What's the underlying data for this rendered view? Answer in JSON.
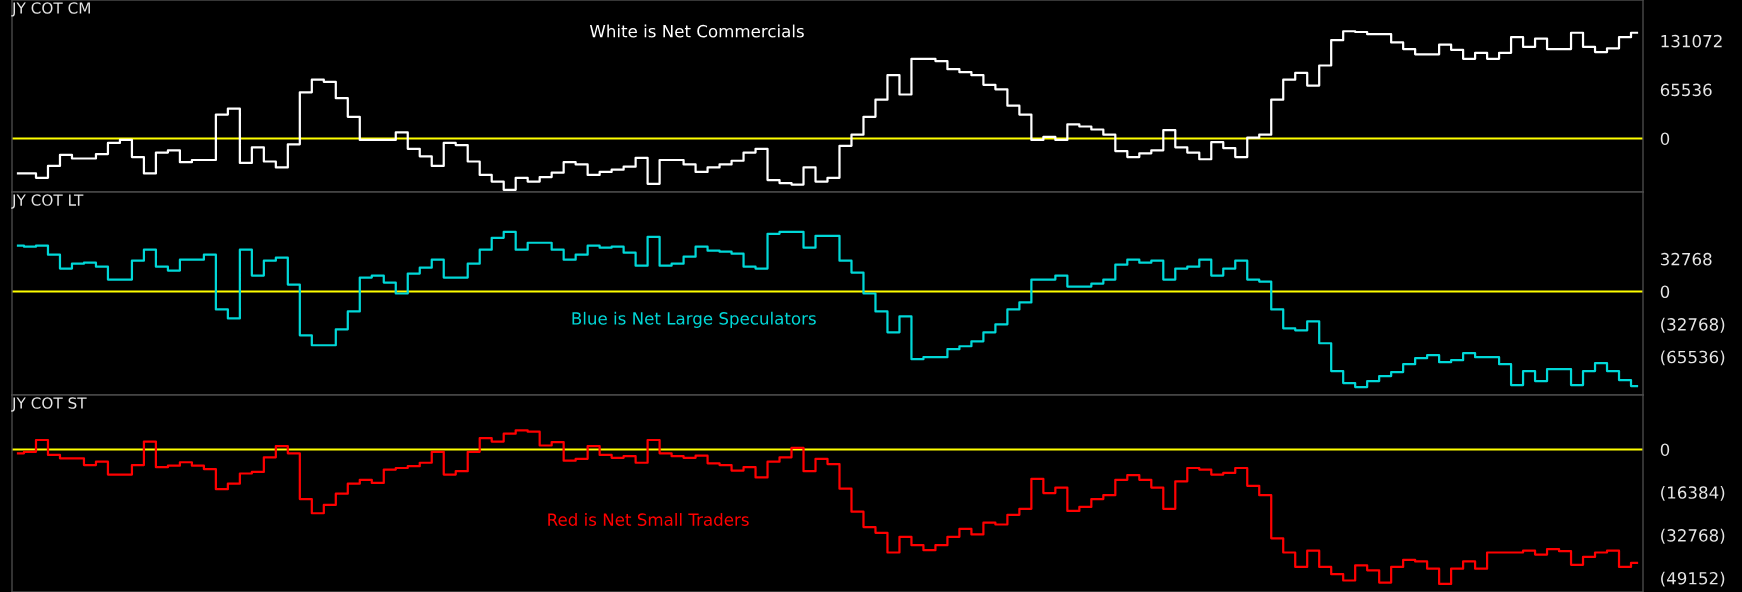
{
  "chart_data": [
    {
      "type": "step",
      "title": "JY COT CM",
      "tick_labels": "y",
      "categories": [
        null,
        null,
        null,
        null,
        null,
        null,
        null,
        null,
        null,
        null,
        null,
        null,
        null,
        null,
        null,
        null,
        null,
        null,
        null,
        null,
        null,
        null,
        null,
        null,
        null,
        null,
        null,
        null,
        null,
        null,
        null,
        null,
        null,
        null,
        null,
        null,
        null,
        null,
        null,
        null,
        null,
        null,
        null,
        null,
        null,
        null,
        null,
        null,
        null,
        null,
        null,
        null,
        null,
        null,
        null,
        null,
        null,
        null,
        null,
        null,
        null,
        null,
        null,
        null,
        null,
        null,
        null,
        null,
        null,
        null,
        null,
        null,
        null,
        null,
        null,
        null,
        null,
        null,
        null,
        null,
        null,
        null,
        null,
        null,
        null,
        null,
        null,
        null,
        null,
        null,
        null,
        null,
        null,
        null,
        null,
        null,
        null,
        null,
        null,
        null,
        null,
        null,
        null,
        null,
        null,
        null,
        null,
        null,
        null,
        null,
        null,
        null,
        null,
        null,
        null,
        null,
        null,
        null,
        null,
        null,
        null,
        null,
        null,
        null,
        null,
        null,
        null,
        null,
        null,
        null,
        null,
        null,
        null,
        null,
        null,
        null
      ],
      "series": [
        {
          "color": "#ffffff",
          "values": [
            -47000,
            -47000,
            -53000,
            -37000,
            -22000,
            -27000,
            -27000,
            -21000,
            -6000,
            -2000,
            -25000,
            -47000,
            -19000,
            -16000,
            -32000,
            -29000,
            -29000,
            32000,
            40000,
            -33000,
            -12000,
            -31000,
            -39000,
            -8000,
            62000,
            79000,
            76000,
            54000,
            29000,
            -2000,
            -2000,
            -2000,
            8000,
            -14000,
            -24000,
            -37000,
            -6000,
            -9000,
            -31000,
            -49000,
            -58000,
            -69000,
            -53000,
            -58000,
            -52000,
            -46000,
            -32000,
            -35000,
            -49000,
            -45000,
            -42000,
            -38000,
            -26000,
            -61000,
            -29000,
            -29000,
            -35000,
            -45000,
            -39000,
            -35000,
            -30000,
            -19000,
            -14000,
            -56000,
            -60000,
            -62000,
            -39000,
            -58000,
            -53000,
            -10000,
            5000,
            29000,
            52000,
            85000,
            59000,
            107000,
            107000,
            104000,
            93000,
            89000,
            85000,
            72000,
            66000,
            44000,
            32000,
            -2000,
            2000,
            -2000,
            19000,
            16000,
            12000,
            5000,
            -17000,
            -25000,
            -20000,
            -16000,
            11000,
            -12000,
            -19000,
            -28000,
            -5000,
            -13000,
            -25000,
            1000,
            5000,
            52000,
            79000,
            88000,
            71000,
            98000,
            132000,
            144000,
            143000,
            140000,
            140000,
            129000,
            120000,
            113000,
            113000,
            126000,
            119000,
            107000,
            115000,
            107000,
            115000,
            136000,
            123000,
            134000,
            120000,
            120000,
            142000,
            123000,
            116000,
            121000,
            136000,
            142000
          ]
        }
      ],
      "ylim": [
        -72000,
        186000
      ],
      "yticks": [
        0,
        65536,
        131072
      ],
      "ref_lines": [
        {
          "axis": "y",
          "value": 0,
          "color": "#ffff00"
        }
      ],
      "annotations": [
        "White is Net Commercials"
      ]
    },
    {
      "type": "step",
      "title": "JY COT LT",
      "tick_labels": "y",
      "categories": [
        null,
        null,
        null,
        null,
        null,
        null,
        null,
        null,
        null,
        null,
        null,
        null,
        null,
        null,
        null,
        null,
        null,
        null,
        null,
        null,
        null,
        null,
        null,
        null,
        null,
        null,
        null,
        null,
        null,
        null,
        null,
        null,
        null,
        null,
        null,
        null,
        null,
        null,
        null,
        null,
        null,
        null,
        null,
        null,
        null,
        null,
        null,
        null,
        null,
        null,
        null,
        null,
        null,
        null,
        null,
        null,
        null,
        null,
        null,
        null,
        null,
        null,
        null,
        null,
        null,
        null,
        null,
        null,
        null,
        null,
        null,
        null,
        null,
        null,
        null,
        null,
        null,
        null,
        null,
        null,
        null,
        null,
        null,
        null,
        null,
        null,
        null,
        null,
        null,
        null,
        null,
        null,
        null,
        null,
        null,
        null,
        null,
        null,
        null,
        null,
        null,
        null,
        null,
        null,
        null,
        null,
        null,
        null,
        null,
        null,
        null,
        null,
        null,
        null,
        null,
        null,
        null,
        null,
        null,
        null,
        null,
        null,
        null,
        null,
        null,
        null,
        null,
        null,
        null,
        null,
        null,
        null,
        null,
        null,
        null,
        null
      ],
      "series": [
        {
          "color": "#00d8d8",
          "values": [
            46000,
            45000,
            46000,
            37000,
            23000,
            28000,
            29000,
            25000,
            12000,
            12000,
            31000,
            42000,
            25000,
            21000,
            32000,
            32000,
            37000,
            -18000,
            -27000,
            42000,
            16000,
            31000,
            34000,
            7000,
            -44000,
            -54000,
            -54000,
            -38000,
            -20000,
            14000,
            16000,
            9000,
            -2000,
            18000,
            24000,
            32000,
            14000,
            14000,
            28000,
            42000,
            54000,
            60000,
            42000,
            49000,
            49000,
            42000,
            32000,
            37000,
            46000,
            44000,
            45000,
            39000,
            26000,
            55000,
            26000,
            28000,
            35000,
            45000,
            41000,
            40000,
            38000,
            25000,
            23000,
            58000,
            60000,
            60000,
            44000,
            56000,
            56000,
            31000,
            19000,
            -2000,
            -20000,
            -41000,
            -25000,
            -68000,
            -66000,
            -66000,
            -58000,
            -55000,
            -50000,
            -41000,
            -33000,
            -18000,
            -11000,
            12000,
            12000,
            16000,
            5000,
            5000,
            8000,
            12000,
            27000,
            32000,
            29000,
            31000,
            12000,
            23000,
            25000,
            32000,
            16000,
            23000,
            31000,
            12000,
            10000,
            -18000,
            -37000,
            -39000,
            -30000,
            -52000,
            -80000,
            -92000,
            -96000,
            -90000,
            -85000,
            -81000,
            -73000,
            -67000,
            -64000,
            -71000,
            -69000,
            -62000,
            -66000,
            -66000,
            -73000,
            -94000,
            -80000,
            -90000,
            -78000,
            -78000,
            -94000,
            -80000,
            -72000,
            -80000,
            -89000,
            -95000
          ]
        }
      ],
      "ylim": [
        -104000,
        100000
      ],
      "yticks": [
        32768,
        0,
        {
          "value": -32768,
          "label": "(32768)"
        },
        {
          "value": -65536,
          "label": "(65536)"
        }
      ],
      "ref_lines": [
        {
          "axis": "y",
          "value": 0,
          "color": "#ffff00"
        }
      ],
      "annotations": [
        "Blue is Net Large Speculators"
      ]
    },
    {
      "type": "step",
      "title": "JY COT ST",
      "tick_labels": "y",
      "categories": [
        null,
        null,
        null,
        null,
        null,
        null,
        null,
        null,
        null,
        null,
        null,
        null,
        null,
        null,
        null,
        null,
        null,
        null,
        null,
        null,
        null,
        null,
        null,
        null,
        null,
        null,
        null,
        null,
        null,
        null,
        null,
        null,
        null,
        null,
        null,
        null,
        null,
        null,
        null,
        null,
        null,
        null,
        null,
        null,
        null,
        null,
        null,
        null,
        null,
        null,
        null,
        null,
        null,
        null,
        null,
        null,
        null,
        null,
        null,
        null,
        null,
        null,
        null,
        null,
        null,
        null,
        null,
        null,
        null,
        null,
        null,
        null,
        null,
        null,
        null,
        null,
        null,
        null,
        null,
        null,
        null,
        null,
        null,
        null,
        null,
        null,
        null,
        null,
        null,
        null,
        null,
        null,
        null,
        null,
        null,
        null,
        null,
        null,
        null,
        null,
        null,
        null,
        null,
        null,
        null,
        null,
        null,
        null,
        null,
        null,
        null,
        null,
        null,
        null,
        null,
        null,
        null,
        null,
        null,
        null,
        null,
        null,
        null,
        null,
        null,
        null,
        null,
        null,
        null,
        null,
        null,
        null,
        null,
        null,
        null,
        null
      ],
      "series": [
        {
          "color": "#ff0000",
          "values": [
            -1500,
            -900,
            3600,
            -2100,
            -3400,
            -3400,
            -6000,
            -4700,
            -9600,
            -9600,
            -6000,
            3000,
            -6800,
            -6200,
            -4900,
            -6200,
            -7500,
            -15200,
            -13100,
            -9200,
            -8600,
            -3000,
            1300,
            -1500,
            -19000,
            -24400,
            -21200,
            -16900,
            -13100,
            -11600,
            -12800,
            -7700,
            -7100,
            -6400,
            -5100,
            -900,
            -9600,
            -8300,
            -900,
            4300,
            3000,
            6000,
            7300,
            6800,
            1500,
            2800,
            -4300,
            -3600,
            1300,
            -2100,
            -3200,
            -2600,
            -5100,
            3600,
            -1500,
            -2600,
            -3200,
            -2400,
            -5300,
            -6000,
            -8100,
            -6800,
            -10700,
            -4700,
            -3000,
            600,
            -8300,
            -3600,
            -5600,
            -15000,
            -23800,
            -29700,
            -31900,
            -39400,
            -33400,
            -36600,
            -38500,
            -36600,
            -33400,
            -30400,
            -32500,
            -28000,
            -28700,
            -25000,
            -22700,
            -11300,
            -16700,
            -14600,
            -23500,
            -22000,
            -19000,
            -17500,
            -11600,
            -9800,
            -11600,
            -14600,
            -22700,
            -12200,
            -7100,
            -7700,
            -9600,
            -9000,
            -7100,
            -13900,
            -17500,
            -34000,
            -39400,
            -44900,
            -38700,
            -44900,
            -47700,
            -50100,
            -44300,
            -46200,
            -50900,
            -44900,
            -42200,
            -42800,
            -45600,
            -51400,
            -45600,
            -42800,
            -45600,
            -39400,
            -39400,
            -39400,
            -38700,
            -40200,
            -38100,
            -38900,
            -44100,
            -41100,
            -39400,
            -38700,
            -44900,
            -43400
          ]
        }
      ],
      "ylim": [
        -54500,
        20800
      ],
      "yticks": [
        0,
        {
          "value": -16384,
          "label": "(16384)"
        },
        {
          "value": -32768,
          "label": "(32768)"
        },
        {
          "value": -49152,
          "label": "(49152)"
        }
      ],
      "ref_lines": [
        {
          "axis": "y",
          "value": 0,
          "color": "#ffff00"
        }
      ],
      "annotations": [
        "Red is Net Small Traders"
      ]
    }
  ]
}
